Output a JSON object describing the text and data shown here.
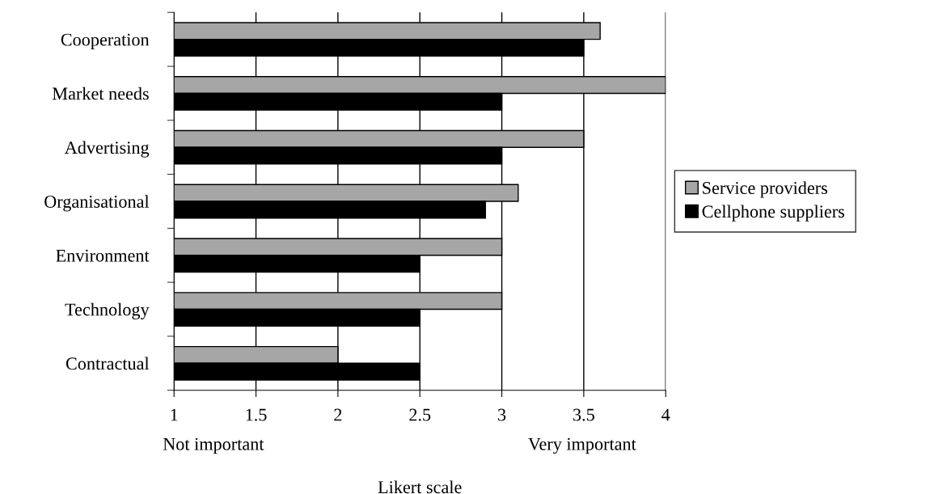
{
  "chart_data": {
    "type": "bar",
    "orientation": "horizontal",
    "categories": [
      "Cooperation",
      "Market needs",
      "Advertising",
      "Organisational",
      "Environment",
      "Technology",
      "Contractual"
    ],
    "series": [
      {
        "name": "Service providers",
        "color": "#a6a6a6",
        "values": [
          3.6,
          4.0,
          3.5,
          3.1,
          3.0,
          3.0,
          2.0
        ]
      },
      {
        "name": "Cellphone suppliers",
        "color": "#000000",
        "values": [
          3.5,
          3.0,
          3.0,
          2.9,
          2.5,
          2.5,
          2.5
        ]
      }
    ],
    "xlim": [
      1,
      4
    ],
    "xticks": [
      1,
      1.5,
      2,
      2.5,
      3,
      3.5,
      4
    ],
    "xlabel": "Likert scale",
    "annotations": [
      "Not important",
      "Very important"
    ],
    "grid": "x",
    "legend": "right"
  }
}
